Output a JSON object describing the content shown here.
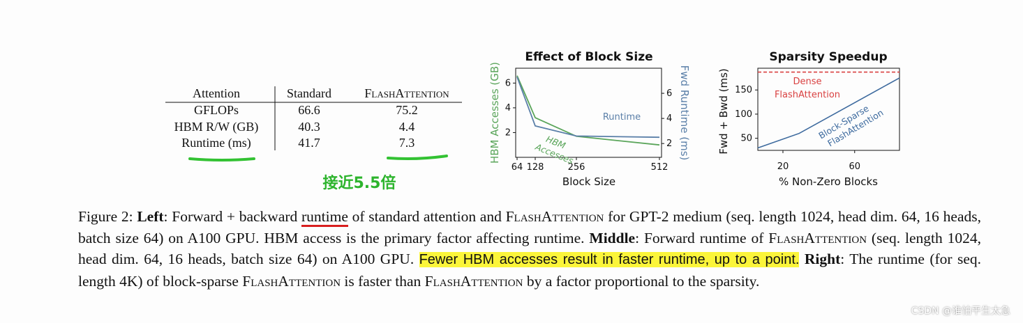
{
  "table": {
    "headers": [
      "Attention",
      "Standard",
      "FlashAttention"
    ],
    "rows": [
      {
        "label": "GFLOPs",
        "standard": "66.6",
        "flash": "75.2"
      },
      {
        "label": "HBM R/W (GB)",
        "standard": "40.3",
        "flash": "4.4"
      },
      {
        "label": "Runtime (ms)",
        "standard": "41.7",
        "flash": "7.3"
      }
    ]
  },
  "annotation": {
    "text": "接近5.5倍",
    "color": "#2db42d"
  },
  "chart_data": [
    {
      "type": "line",
      "title": "Effect of Block Size",
      "xlabel": "Block Size",
      "ylabel_left": "HBM Accesses (GB)",
      "ylabel_right": "Fwd Runtime (ms)",
      "x": [
        64,
        128,
        256,
        512
      ],
      "xticks": [
        "64",
        "128",
        "256",
        "512"
      ],
      "ylim_left": [
        0,
        7.2
      ],
      "yticks_left": [
        "2",
        "4",
        "6"
      ],
      "ylim_right": [
        0.9,
        8.0
      ],
      "yticks_right": [
        "2",
        "4",
        "6"
      ],
      "series": [
        {
          "name": "HBM Accesses",
          "axis": "left",
          "color": "#5aa55a",
          "values": [
            6.6,
            3.2,
            1.7,
            1.0
          ]
        },
        {
          "name": "Runtime",
          "axis": "right",
          "color": "#5a7fa8",
          "values": [
            7.3,
            3.4,
            2.6,
            2.5
          ]
        }
      ]
    },
    {
      "type": "line",
      "title": "Sparsity Speedup",
      "xlabel": "% Non-Zero Blocks",
      "ylabel": "Fwd + Bwd (ms)",
      "xlim": [
        6,
        85
      ],
      "xticks": [
        "20",
        "60"
      ],
      "ylim": [
        25,
        195
      ],
      "yticks": [
        "50",
        "100",
        "150"
      ],
      "series": [
        {
          "name": "Dense FlashAttention",
          "style": "dashed",
          "color": "#d94040",
          "x": [
            6,
            85
          ],
          "y": [
            187,
            187
          ]
        },
        {
          "name": "Block-Sparse FlashAttention",
          "style": "solid",
          "color": "#3d6a9e",
          "x": [
            6,
            29,
            85
          ],
          "y": [
            30,
            60,
            175
          ]
        }
      ],
      "annotations": [
        {
          "text": "Dense",
          "color": "#d94040"
        },
        {
          "text": "FlashAttention",
          "color": "#d94040"
        },
        {
          "text": "Block-Sparse",
          "color": "#3d6a9e"
        },
        {
          "text": "FlashAttention",
          "color": "#3d6a9e"
        }
      ]
    }
  ],
  "caption": {
    "prefix": "Figure 2:  ",
    "left_label": "Left",
    "p1a": ": Forward + backward ",
    "runtime_word": "runtime",
    "p1b": " of standard attention and ",
    "flash1": "FlashAttention",
    "p1c": " for GPT-2 medium (seq. length 1024, head dim. 64, 16 heads, batch size 64) on A100 GPU. HBM access is the primary factor affecting runtime. ",
    "middle_label": "Middle",
    "p2a": ": Forward runtime of ",
    "flash2": "FlashAttention",
    "p2b": " (seq. length 1024, head dim. 64, 16 heads, batch size 64) on A100 GPU. ",
    "highlight": "Fewer HBM accesses result in faster runtime, up to a point.",
    "right_label": "Right",
    "p3a": ": The runtime (for seq. length 4K) of block-sparse ",
    "flash3": "FlashAttention",
    "p3b": " is faster than ",
    "flash4": "FlashAttention",
    "p3c": " by a factor proportional to the sparsity."
  },
  "watermark": "CSDN @谁怕平生太急"
}
